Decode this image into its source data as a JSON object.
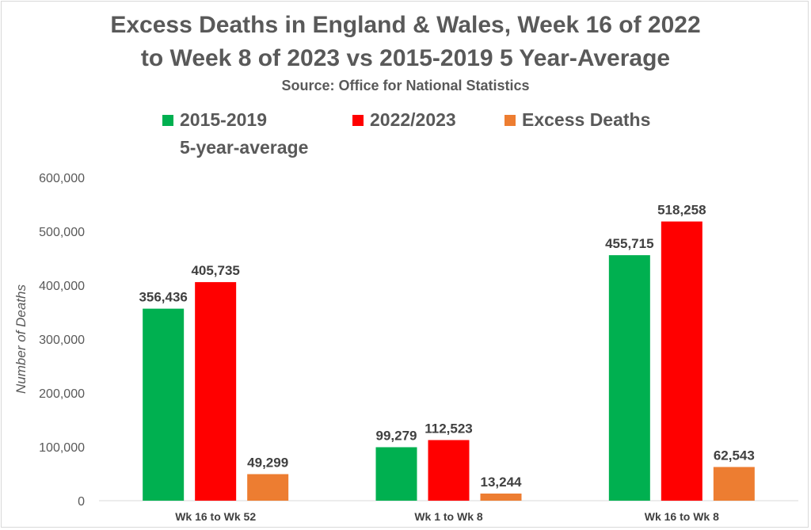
{
  "chart_data": {
    "type": "bar",
    "title_line1": "Excess Deaths in England & Wales, Week 16 of 2022",
    "title_line2": "to Week 8 of 2023 vs 2015-2019 5 Year-Average",
    "subtitle": "Source: Office for National Statistics",
    "ylabel": "Number of Deaths",
    "xlabel": "",
    "categories": [
      "Wk 16 to Wk 52",
      "Wk 1 to Wk 8",
      "Wk 16 to Wk 8"
    ],
    "series": [
      {
        "name_line1": "2015-2019",
        "name_line2": "5-year-average",
        "color": "#00b050",
        "values": [
          356436,
          99279,
          455715
        ],
        "labels": [
          "356,436",
          "99,279",
          "455,715"
        ]
      },
      {
        "name_line1": "2022/2023",
        "name_line2": "",
        "color": "#ff0000",
        "values": [
          405735,
          112523,
          518258
        ],
        "labels": [
          "405,735",
          "112,523",
          "518,258"
        ]
      },
      {
        "name_line1": "Excess Deaths",
        "name_line2": "",
        "color": "#ed7d31",
        "values": [
          49299,
          13244,
          62543
        ],
        "labels": [
          "49,299",
          "13,244",
          "62,543"
        ]
      }
    ],
    "ylim": [
      0,
      600000
    ],
    "yticks": [
      0,
      100000,
      200000,
      300000,
      400000,
      500000,
      600000
    ],
    "ytick_labels": [
      "0",
      "100,000",
      "200,000",
      "300,000",
      "400,000",
      "500,000",
      "600,000"
    ],
    "grid": false,
    "legend_position": "top"
  }
}
